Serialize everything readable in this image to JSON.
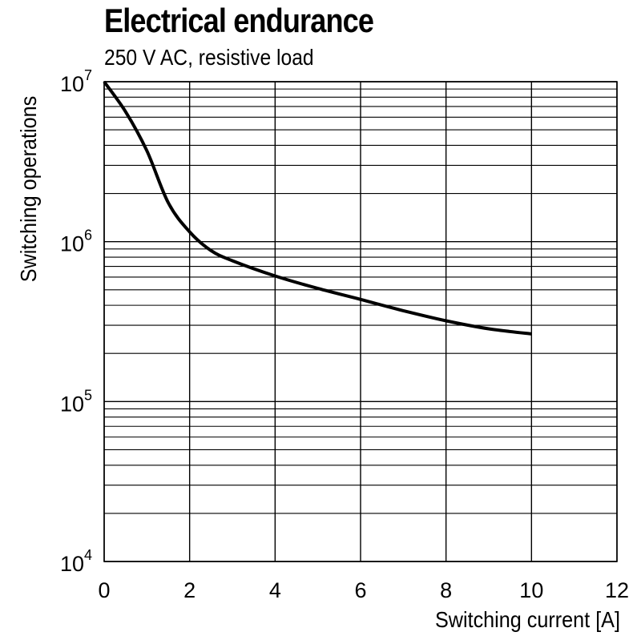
{
  "header": {
    "title": "Electrical endurance",
    "subtitle": "250 V AC, resistive load"
  },
  "chart_data": {
    "type": "line",
    "title": "Electrical endurance",
    "subtitle": "250 V AC, resistive load",
    "xlabel": "Switching current [A]",
    "ylabel": "Switching operations",
    "xlim": [
      0,
      12
    ],
    "ylim": [
      10000,
      10000000
    ],
    "yscale": "log",
    "grid": true,
    "x_ticks": [
      "0",
      "2",
      "4",
      "6",
      "8",
      "10",
      "12"
    ],
    "y_ticks": [
      {
        "base": "10",
        "exp": "4",
        "value": 10000
      },
      {
        "base": "10",
        "exp": "5",
        "value": 100000
      },
      {
        "base": "10",
        "exp": "6",
        "value": 1000000
      },
      {
        "base": "10",
        "exp": "7",
        "value": 10000000
      }
    ],
    "series": [
      {
        "color": "#000000",
        "x": [
          0,
          0.5,
          1.0,
          1.5,
          2.0,
          2.5,
          3.0,
          4.0,
          5.0,
          6.0,
          7.0,
          8.0,
          9.0,
          10.0
        ],
        "y": [
          10000000,
          6500000,
          3700000,
          1750000,
          1150000,
          880000,
          760000,
          610000,
          510000,
          435000,
          370000,
          320000,
          285000,
          265000
        ]
      }
    ]
  }
}
